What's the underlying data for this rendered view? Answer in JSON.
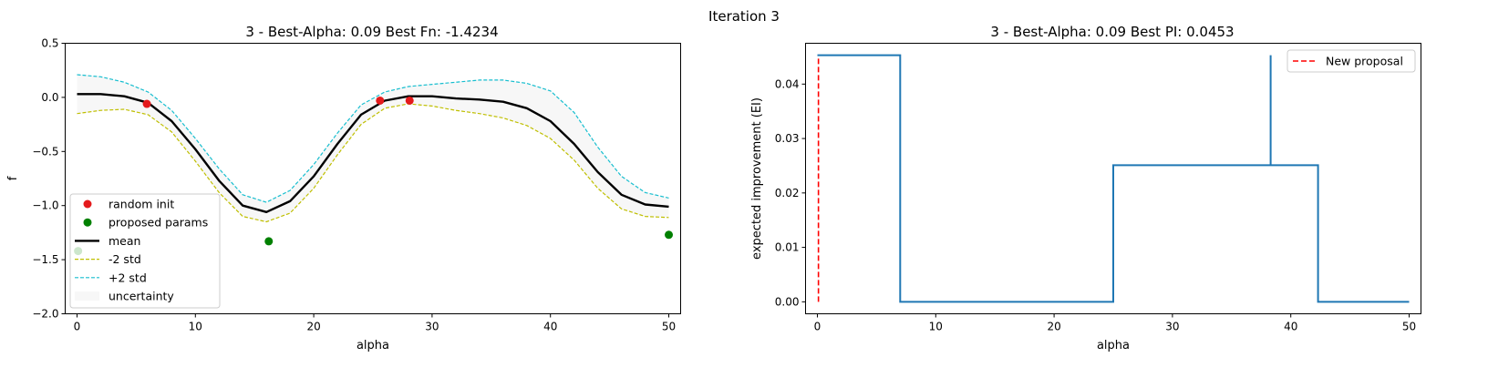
{
  "figure": {
    "suptitle": "Iteration 3"
  },
  "colors": {
    "mean": "#000000",
    "minus2std": "#bfbf00",
    "plus2std": "#17becf",
    "uncertainty": "#f7f7f7",
    "random_init": "#e41a1c",
    "proposed": "#008000",
    "ei": "#1f77b4",
    "proposal": "#ff0000"
  },
  "chart_data": [
    {
      "type": "line",
      "title": "3 - Best-Alpha: 0.09 Best Fn: -1.4234",
      "xlabel": "alpha",
      "ylabel": "f",
      "xlim": [
        -1,
        51
      ],
      "ylim": [
        -2.0,
        0.5
      ],
      "xticks": [
        0,
        10,
        20,
        30,
        40,
        50
      ],
      "yticks": [
        0.5,
        0.0,
        -0.5,
        -1.0,
        -1.5,
        -2.0
      ],
      "ytick_labels": [
        "0.5",
        "0.0",
        "−0.5",
        "−1.0",
        "−1.5",
        "−2.0"
      ],
      "grid": false,
      "legend_position": "lower-left",
      "x": [
        0,
        2,
        4,
        6,
        8,
        10,
        12,
        14,
        16,
        18,
        20,
        22,
        24,
        26,
        28,
        30,
        32,
        34,
        36,
        38,
        40,
        42,
        44,
        46,
        48,
        50
      ],
      "series": [
        {
          "name": "mean",
          "values": [
            0.03,
            0.03,
            0.01,
            -0.05,
            -0.22,
            -0.48,
            -0.77,
            -1.0,
            -1.06,
            -0.96,
            -0.73,
            -0.43,
            -0.16,
            -0.03,
            0.01,
            0.01,
            -0.01,
            -0.02,
            -0.04,
            -0.1,
            -0.22,
            -0.43,
            -0.69,
            -0.9,
            -0.99,
            -1.01
          ]
        },
        {
          "name": "-2 std",
          "values": [
            -0.15,
            -0.12,
            -0.11,
            -0.16,
            -0.32,
            -0.59,
            -0.88,
            -1.1,
            -1.15,
            -1.07,
            -0.84,
            -0.53,
            -0.25,
            -0.1,
            -0.06,
            -0.08,
            -0.12,
            -0.15,
            -0.19,
            -0.26,
            -0.38,
            -0.58,
            -0.84,
            -1.03,
            -1.1,
            -1.11
          ]
        },
        {
          "name": "+2 std",
          "values": [
            0.21,
            0.19,
            0.14,
            0.05,
            -0.12,
            -0.38,
            -0.66,
            -0.9,
            -0.97,
            -0.86,
            -0.62,
            -0.33,
            -0.07,
            0.05,
            0.1,
            0.12,
            0.14,
            0.16,
            0.16,
            0.13,
            0.06,
            -0.14,
            -0.46,
            -0.73,
            -0.88,
            -0.93
          ]
        }
      ],
      "scatter": [
        {
          "name": "random init",
          "points": [
            [
              5.9,
              -0.06
            ],
            [
              25.6,
              -0.03
            ],
            [
              28.1,
              -0.03
            ]
          ]
        },
        {
          "name": "proposed params",
          "points": [
            [
              0.09,
              -1.42
            ],
            [
              16.2,
              -1.33
            ],
            [
              50,
              -1.27
            ]
          ]
        }
      ],
      "legend": [
        "random init",
        "proposed params",
        "mean",
        "-2 std",
        "+2 std",
        "uncertainty"
      ]
    },
    {
      "type": "line",
      "title": "3 - Best-Alpha: 0.09 Best PI: 0.0453",
      "xlabel": "alpha",
      "ylabel": "expected improvement (EI)",
      "xlim": [
        -1,
        51
      ],
      "ylim": [
        -0.0022,
        0.0475
      ],
      "xticks": [
        0,
        10,
        20,
        30,
        40,
        50
      ],
      "yticks": [
        0.0,
        0.01,
        0.02,
        0.03,
        0.04
      ],
      "ytick_labels": [
        "0.00",
        "0.01",
        "0.02",
        "0.03",
        "0.04"
      ],
      "grid": false,
      "legend_position": "top-right",
      "series": [
        {
          "name": "EI",
          "x": [
            0,
            7,
            7,
            25,
            25,
            38.3,
            38.3,
            38.3,
            38.3,
            42.3,
            42.3,
            50
          ],
          "values": [
            0.0453,
            0.0453,
            0.0,
            0.0,
            0.0251,
            0.0251,
            0.0453,
            0.0253,
            0.0251,
            0.0251,
            0.0,
            0.0
          ]
        }
      ],
      "proposal": {
        "name": "New proposal",
        "x": 0.09,
        "y_range": [
          0.0,
          0.045
        ]
      },
      "legend": [
        "New proposal"
      ]
    }
  ]
}
